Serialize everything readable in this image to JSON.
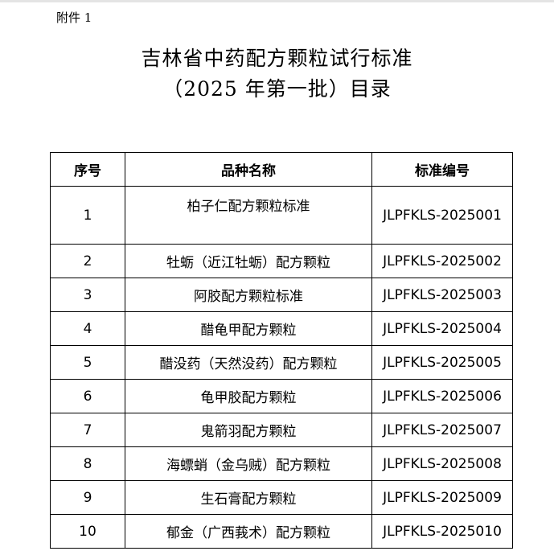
{
  "attachment_label": "附件 1",
  "title_line1": "吉林省中药配方颗粒试行标准",
  "title_line2": "（2025 年第一批）目录",
  "table": {
    "headers": [
      "序号",
      "品种名称",
      "标准编号"
    ],
    "rows": [
      {
        "no": "1",
        "name": "柏子仁配方颗粒标准",
        "code": "JLPFKLS-2025001"
      },
      {
        "no": "2",
        "name": "牡蛎（近江牡蛎）配方颗粒",
        "code": "JLPFKLS-2025002"
      },
      {
        "no": "3",
        "name": "阿胶配方颗粒标准",
        "code": "JLPFKLS-2025003"
      },
      {
        "no": "4",
        "name": "醋龟甲配方颗粒",
        "code": "JLPFKLS-2025004"
      },
      {
        "no": "5",
        "name": "醋没药（天然没药）配方颗粒",
        "code": "JLPFKLS-2025005"
      },
      {
        "no": "6",
        "name": "龟甲胶配方颗粒",
        "code": "JLPFKLS-2025006"
      },
      {
        "no": "7",
        "name": "鬼箭羽配方颗粒",
        "code": "JLPFKLS-2025007"
      },
      {
        "no": "8",
        "name": "海螵蛸（金乌贼）配方颗粒",
        "code": "JLPFKLS-2025008"
      },
      {
        "no": "9",
        "name": "生石膏配方颗粒",
        "code": "JLPFKLS-2025009"
      },
      {
        "no": "10",
        "name": "郁金（广西莪术）配方颗粒",
        "code": "JLPFKLS-2025010"
      }
    ]
  }
}
